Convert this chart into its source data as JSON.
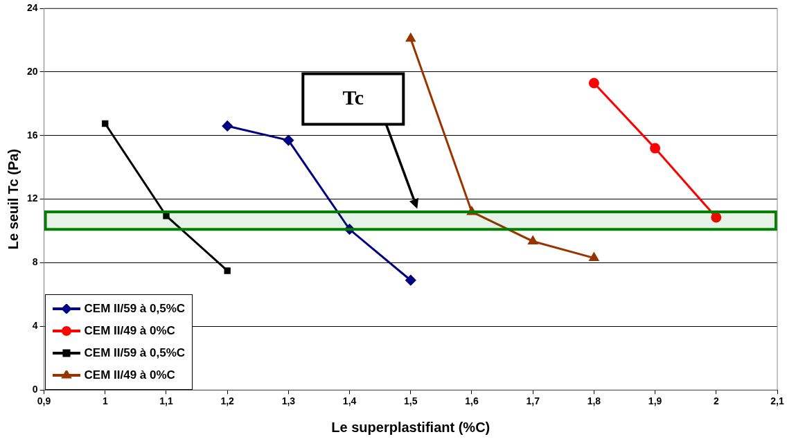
{
  "chart_data": {
    "type": "line",
    "xlabel": "Le superplastifiant (%C)",
    "ylabel": "Le seuil Tc (Pa)",
    "series": [
      {
        "name": "CEM II/59 à 0,5%C",
        "color": "#000080",
        "marker": "diamond",
        "x": [
          1.2,
          1.3,
          1.4,
          1.5
        ],
        "values": [
          16.6,
          15.7,
          10.1,
          6.9
        ]
      },
      {
        "name": "CEM II/49 à 0%C",
        "color": "#ff0000",
        "marker": "circle",
        "x": [
          1.8,
          1.9,
          2.0
        ],
        "values": [
          19.3,
          15.2,
          10.85
        ]
      },
      {
        "name": "CEM II/59 à 0,5%C",
        "color": "#000000",
        "marker": "square",
        "x": [
          1.0,
          1.1,
          1.2
        ],
        "values": [
          16.75,
          10.95,
          7.5
        ]
      },
      {
        "name": "CEM II/49 à 0%C",
        "color": "#993300",
        "marker": "triangle",
        "x": [
          1.5,
          1.6,
          1.7,
          1.8
        ],
        "values": [
          22.1,
          11.2,
          9.35,
          8.3
        ]
      }
    ],
    "xlim": [
      0.9,
      2.1
    ],
    "xticks": [
      {
        "value": 0.9,
        "label": "0,9"
      },
      1,
      {
        "value": 1.1,
        "label": "1,1"
      },
      {
        "value": 1.2,
        "label": "1,2"
      },
      {
        "value": 1.3,
        "label": "1,3"
      },
      {
        "value": 1.4,
        "label": "1,4"
      },
      {
        "value": 1.5,
        "label": "1,5"
      },
      {
        "value": 1.6,
        "label": "1,6"
      },
      {
        "value": 1.7,
        "label": "1,7"
      },
      {
        "value": 1.8,
        "label": "1,8"
      },
      {
        "value": 1.9,
        "label": "1,9"
      },
      2,
      {
        "value": 2.1,
        "label": "2,1"
      }
    ],
    "ylim": [
      0,
      24
    ],
    "yticks": [
      0,
      4,
      8,
      12,
      16,
      20,
      24
    ],
    "bands": [
      {
        "axis": "y",
        "from": 10.1,
        "to": 11.2,
        "color": "#008000"
      }
    ],
    "annotations": [
      "Tc"
    ],
    "grid": "y",
    "legend": "bottom left",
    "line_style": "solid"
  }
}
